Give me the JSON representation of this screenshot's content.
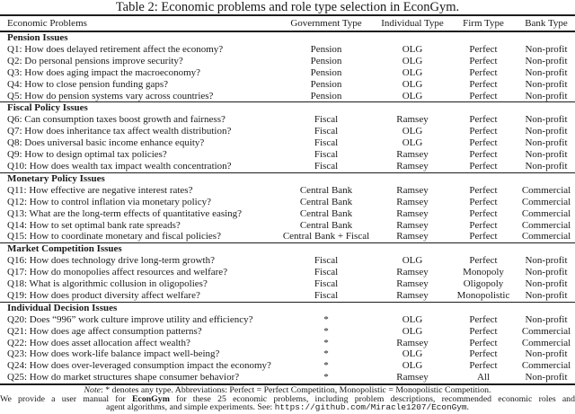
{
  "title": "Table 2: Economic problems and role type selection in EconGym.",
  "table": {
    "columns": [
      "Economic Problems",
      "Government Type",
      "Individual Type",
      "Firm Type",
      "Bank Type"
    ],
    "sections": [
      {
        "header": "Pension Issues",
        "rows": [
          [
            "Q1: How does delayed retirement affect the economy?",
            "Pension",
            "OLG",
            "Perfect",
            "Non-profit"
          ],
          [
            "Q2: Do personal pensions improve security?",
            "Pension",
            "OLG",
            "Perfect",
            "Non-profit"
          ],
          [
            "Q3: How does aging impact the macroeconomy?",
            "Pension",
            "OLG",
            "Perfect",
            "Non-profit"
          ],
          [
            "Q4: How to close pension funding gaps?",
            "Pension",
            "OLG",
            "Perfect",
            "Non-profit"
          ],
          [
            "Q5: How do pension systems vary across countries?",
            "Pension",
            "OLG",
            "Perfect",
            "Non-profit"
          ]
        ]
      },
      {
        "header": "Fiscal Policy Issues",
        "rows": [
          [
            "Q6: Can consumption taxes boost growth and fairness?",
            "Fiscal",
            "Ramsey",
            "Perfect",
            "Non-profit"
          ],
          [
            "Q7: How does inheritance tax affect wealth distribution?",
            "Fiscal",
            "OLG",
            "Perfect",
            "Non-profit"
          ],
          [
            "Q8: Does universal basic income enhance equity?",
            "Fiscal",
            "OLG",
            "Perfect",
            "Non-profit"
          ],
          [
            "Q9: How to design optimal tax policies?",
            "Fiscal",
            "Ramsey",
            "Perfect",
            "Non-profit"
          ],
          [
            "Q10: How does wealth tax impact wealth concentration?",
            "Fiscal",
            "Ramsey",
            "Perfect",
            "Non-profit"
          ]
        ]
      },
      {
        "header": "Monetary Policy Issues",
        "rows": [
          [
            "Q11: How effective are negative interest rates?",
            "Central Bank",
            "Ramsey",
            "Perfect",
            "Commercial"
          ],
          [
            "Q12: How to control inflation via monetary policy?",
            "Central Bank",
            "Ramsey",
            "Perfect",
            "Commercial"
          ],
          [
            "Q13: What are the long-term effects of quantitative easing?",
            "Central Bank",
            "Ramsey",
            "Perfect",
            "Commercial"
          ],
          [
            "Q14: How to set optimal bank rate spreads?",
            "Central Bank",
            "Ramsey",
            "Perfect",
            "Commercial"
          ],
          [
            "Q15: How to coordinate monetary and fiscal policies?",
            "Central Bank + Fiscal",
            "Ramsey",
            "Perfect",
            "Commercial"
          ]
        ]
      },
      {
        "header": "Market Competition Issues",
        "rows": [
          [
            "Q16: How does technology drive long-term growth?",
            "Fiscal",
            "OLG",
            "Perfect",
            "Non-profit"
          ],
          [
            "Q17: How do monopolies affect resources and welfare?",
            "Fiscal",
            "Ramsey",
            "Monopoly",
            "Non-profit"
          ],
          [
            "Q18: What is algorithmic collusion in oligopolies?",
            "Fiscal",
            "Ramsey",
            "Oligopoly",
            "Non-profit"
          ],
          [
            "Q19: How does product diversity affect welfare?",
            "Fiscal",
            "Ramsey",
            "Monopolistic",
            "Non-profit"
          ]
        ]
      },
      {
        "header": "Individual Decision Issues",
        "rows": [
          [
            "Q20: Does “996” work culture improve utility and efficiency?",
            "*",
            "OLG",
            "Perfect",
            "Non-profit"
          ],
          [
            "Q21: How does age affect consumption patterns?",
            "*",
            "OLG",
            "Perfect",
            "Commercial"
          ],
          [
            "Q22: How does asset allocation affect wealth?",
            "*",
            "Ramsey",
            "Perfect",
            "Commercial"
          ],
          [
            "Q23: How does work-life balance impact well-being?",
            "*",
            "OLG",
            "Perfect",
            "Non-profit"
          ],
          [
            "Q24: How does over-leveraged consumption impact the economy?",
            "*",
            "OLG",
            "Perfect",
            "Commercial"
          ],
          [
            "Q25: How do market structures shape consumer behavior?",
            "*",
            "Ramsey",
            "All",
            "Non-profit"
          ]
        ]
      }
    ]
  },
  "footnote": {
    "note_label": "Note",
    "note_text": ": * denotes any type. Abbreviations: Perfect = Perfect Competition, Monopolistic = Monopolistic Competition.",
    "manual_pre": "We provide a user manual for ",
    "manual_bold": "EconGym",
    "manual_post": " for these 25 economic problems, including problem descriptions, recommended economic roles and",
    "see_pre": "agent algorithms, and simple experiments. See: ",
    "url": "https://github.com/Miracle1207/EconGym",
    "url_suffix": "."
  }
}
